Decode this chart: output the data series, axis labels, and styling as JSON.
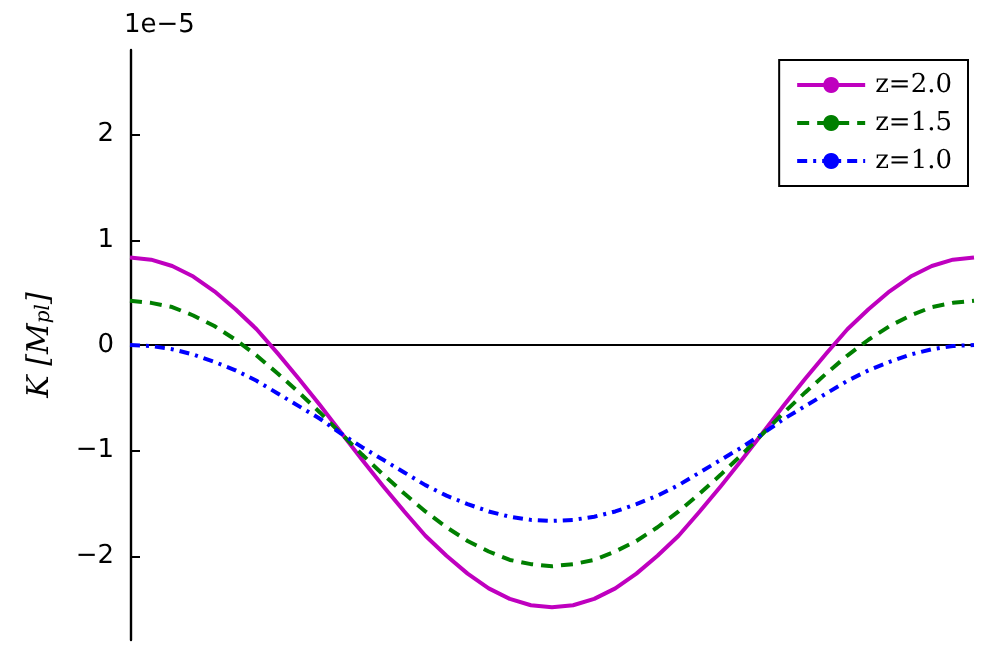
{
  "chart_data": {
    "type": "line",
    "ylabel": "K [M$_{pl}$]",
    "annotations": [
      "1e−5"
    ],
    "categories": [
      null,
      null,
      null,
      null,
      null,
      null,
      null,
      null,
      null,
      null,
      null,
      null,
      null,
      null,
      null,
      null,
      null,
      null,
      null,
      null,
      null,
      null,
      null,
      null,
      null,
      null,
      null,
      null,
      null,
      null,
      null,
      null,
      null,
      null,
      null,
      null,
      null,
      null,
      null,
      null,
      null
    ],
    "series": [
      {
        "name": "z=2.0",
        "color": "#bf00bf",
        "line_style": "solid",
        "values": [
          0.83,
          0.81,
          0.75,
          0.65,
          0.51,
          0.34,
          0.15,
          -0.08,
          -0.32,
          -0.57,
          -0.83,
          -1.09,
          -1.34,
          -1.58,
          -1.81,
          -2.0,
          -2.17,
          -2.31,
          -2.41,
          -2.47,
          -2.49,
          -2.47,
          -2.41,
          -2.31,
          -2.17,
          -2.0,
          -1.81,
          -1.58,
          -1.34,
          -1.09,
          -0.83,
          -0.57,
          -0.32,
          -0.08,
          0.15,
          0.34,
          0.51,
          0.65,
          0.75,
          0.81,
          0.83
        ]
      },
      {
        "name": "z=1.5",
        "color": "#007f00",
        "line_style": "dashed",
        "values": [
          0.42,
          0.4,
          0.36,
          0.28,
          0.18,
          0.05,
          -0.1,
          -0.27,
          -0.45,
          -0.64,
          -0.84,
          -1.04,
          -1.23,
          -1.41,
          -1.58,
          -1.73,
          -1.86,
          -1.96,
          -2.04,
          -2.08,
          -2.1,
          -2.08,
          -2.04,
          -1.96,
          -1.86,
          -1.73,
          -1.58,
          -1.41,
          -1.23,
          -1.04,
          -0.84,
          -0.64,
          -0.45,
          -0.27,
          -0.1,
          0.05,
          0.18,
          0.28,
          0.36,
          0.4,
          0.42
        ]
      },
      {
        "name": "z=1.0",
        "color": "#0000ff",
        "line_style": "dotted",
        "values": [
          0,
          -0.01,
          -0.04,
          -0.09,
          -0.16,
          -0.24,
          -0.34,
          -0.46,
          -0.58,
          -0.7,
          -0.84,
          -0.97,
          -1.09,
          -1.21,
          -1.33,
          -1.43,
          -1.51,
          -1.58,
          -1.63,
          -1.66,
          -1.67,
          -1.66,
          -1.63,
          -1.58,
          -1.51,
          -1.43,
          -1.33,
          -1.21,
          -1.09,
          -0.97,
          -0.84,
          -0.7,
          -0.58,
          -0.46,
          -0.34,
          -0.24,
          -0.16,
          -0.09,
          -0.04,
          -0.01,
          0
        ]
      }
    ],
    "ylim": [
      -2.8,
      2.8
    ],
    "yticks": [
      {
        "value": -2,
        "label": "−2"
      },
      {
        "value": -1,
        "label": "−1"
      },
      0,
      1,
      2
    ],
    "ref_lines": [
      {
        "axis": "y",
        "value": 0,
        "color": "#000000"
      }
    ],
    "tick_labels": "y",
    "legend": "top right",
    "grid": false,
    "marker": "none"
  }
}
